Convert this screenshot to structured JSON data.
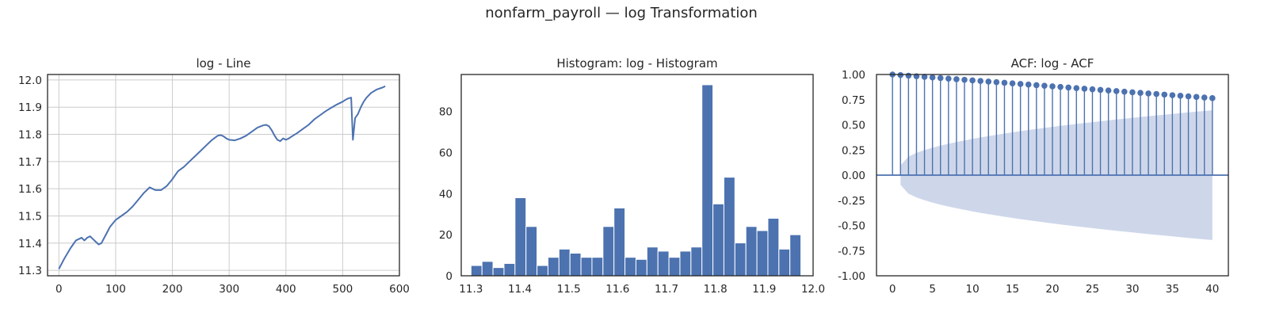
{
  "figure": {
    "suptitle": "nonfarm_payroll — log Transformation"
  },
  "colors": {
    "series": "#4c72b0",
    "conf_band": "#b9c6e1",
    "frame": "#262626",
    "grid": "#cccccc"
  },
  "chart_data": [
    {
      "type": "line",
      "title": "log - Line",
      "xlim": [
        -20,
        600
      ],
      "ylim": [
        11.28,
        12.02
      ],
      "xticks": [
        0,
        100,
        200,
        300,
        400,
        500,
        600
      ],
      "yticks": [
        11.3,
        11.4,
        11.5,
        11.6,
        11.7,
        11.8,
        11.9,
        12.0
      ],
      "grid": true,
      "series": [
        {
          "x": [
            0,
            10,
            20,
            25,
            30,
            35,
            40,
            45,
            50,
            55,
            60,
            65,
            70,
            75,
            80,
            85,
            90,
            100,
            110,
            120,
            130,
            140,
            150,
            155,
            160,
            165,
            170,
            175,
            180,
            190,
            200,
            210,
            220,
            230,
            240,
            250,
            260,
            270,
            280,
            285,
            290,
            295,
            300,
            310,
            320,
            330,
            340,
            350,
            360,
            365,
            370,
            375,
            380,
            385,
            390,
            395,
            400,
            405,
            410,
            420,
            430,
            440,
            450,
            460,
            470,
            480,
            490,
            500,
            505,
            510,
            515,
            518,
            522,
            527,
            532,
            537,
            542,
            550,
            560,
            570,
            575
          ],
          "y": [
            11.305,
            11.345,
            11.38,
            11.395,
            11.41,
            11.415,
            11.42,
            11.41,
            11.42,
            11.425,
            11.415,
            11.405,
            11.395,
            11.4,
            11.42,
            11.44,
            11.46,
            11.485,
            11.5,
            11.515,
            11.535,
            11.56,
            11.585,
            11.595,
            11.605,
            11.6,
            11.595,
            11.595,
            11.595,
            11.61,
            11.635,
            11.665,
            11.68,
            11.7,
            11.72,
            11.74,
            11.76,
            11.78,
            11.795,
            11.797,
            11.793,
            11.785,
            11.78,
            11.778,
            11.785,
            11.795,
            11.81,
            11.825,
            11.833,
            11.835,
            11.83,
            11.815,
            11.795,
            11.78,
            11.775,
            11.785,
            11.78,
            11.785,
            11.792,
            11.805,
            11.82,
            11.835,
            11.855,
            11.87,
            11.885,
            11.898,
            11.91,
            11.92,
            11.927,
            11.932,
            11.935,
            11.78,
            11.86,
            11.875,
            11.9,
            11.92,
            11.935,
            11.952,
            11.965,
            11.972,
            11.977
          ]
        }
      ]
    },
    {
      "type": "bar",
      "title": "Histogram: log - Histogram",
      "xlim": [
        11.28,
        12.0
      ],
      "ylim": [
        0,
        98
      ],
      "xticks": [
        11.3,
        11.4,
        11.5,
        11.6,
        11.7,
        11.8,
        11.9,
        12.0
      ],
      "yticks": [
        0,
        20,
        40,
        60,
        80
      ],
      "grid": false,
      "bin_start": 11.3,
      "bin_width": 0.0225,
      "values": [
        5,
        7,
        4,
        6,
        38,
        24,
        5,
        9,
        13,
        11,
        9,
        9,
        24,
        33,
        9,
        8,
        14,
        12,
        9,
        12,
        14,
        93,
        35,
        48,
        16,
        24,
        22,
        28,
        13,
        20
      ]
    },
    {
      "type": "scatter",
      "title": "ACF: log - ACF",
      "xlim": [
        -2,
        42
      ],
      "ylim": [
        -1.0,
        1.0
      ],
      "xticks": [
        0,
        5,
        10,
        15,
        20,
        25,
        30,
        35,
        40
      ],
      "yticks": [
        -1.0,
        -0.75,
        -0.5,
        -0.25,
        0.0,
        0.25,
        0.5,
        0.75,
        1.0
      ],
      "grid": false,
      "acf_first": 1.0,
      "acf_last": 0.765,
      "conf_first": 0.097,
      "conf_last": 0.645,
      "lags": 40
    }
  ]
}
